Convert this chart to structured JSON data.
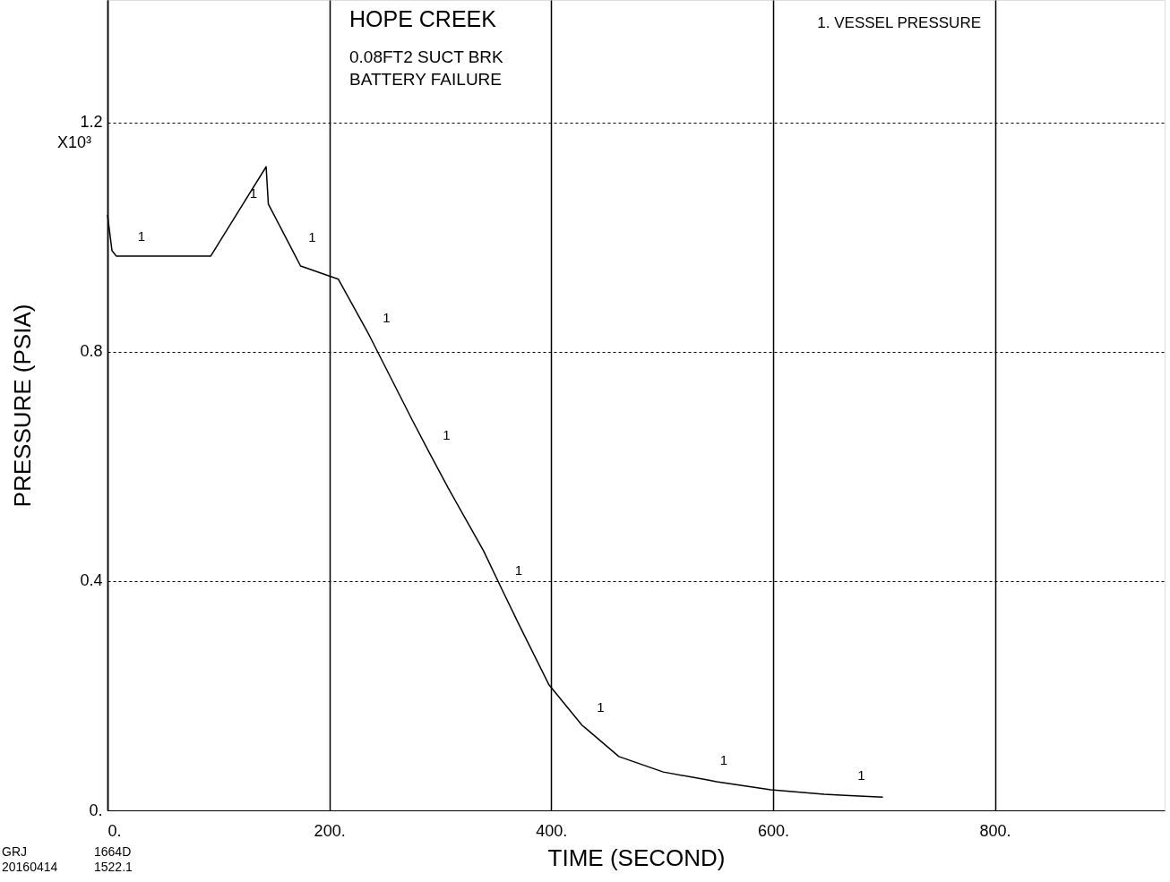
{
  "chart_data": {
    "type": "line",
    "title": "HOPE CREEK",
    "subtitle": [
      "0.08FT2 SUCT BRK",
      "BATTERY FAILURE"
    ],
    "xlabel": "TIME (SECOND)",
    "ylabel": "PRESSURE (PSIA)",
    "xlim": [
      0,
      953
    ],
    "ylim": [
      0,
      1.414
    ],
    "xticks": [
      {
        "value": 0,
        "label": "0."
      },
      {
        "value": 200,
        "label": "200."
      },
      {
        "value": 400,
        "label": "400."
      },
      {
        "value": 600,
        "label": "600."
      },
      {
        "value": 800,
        "label": "800."
      }
    ],
    "yticks": [
      {
        "value": 0,
        "label": "0."
      },
      0.4,
      0.8,
      1.2
    ],
    "grid": true,
    "legend": "top right",
    "series": [
      {
        "name": "1. VESSEL PRESSURE",
        "color": "#000000",
        "x": [
          0,
          4,
          8,
          16,
          93,
          117,
          143,
          145,
          170,
          174,
          208,
          234,
          237,
          275,
          291,
          307,
          339,
          356,
          372,
          398,
          428,
          430,
          461,
          501,
          541,
          549,
          598,
          646,
          665,
          699
        ],
        "values": [
          1.039,
          0.977,
          0.967,
          0.967,
          0.967,
          1.042,
          1.123,
          1.058,
          0.965,
          0.95,
          0.927,
          0.836,
          0.825,
          0.68,
          0.621,
          0.563,
          0.453,
          0.384,
          0.32,
          0.219,
          0.148,
          0.145,
          0.094,
          0.067,
          0.053,
          0.05,
          0.036,
          0.028,
          0.026,
          0.023
        ]
      }
    ],
    "annotations": [
      "X10³",
      "GRJ",
      "1664D",
      "20160414",
      "1522.1",
      {
        "text": "1",
        "x": 16,
        "y": 0.967
      },
      {
        "text": "1",
        "x": 117,
        "y": 1.042
      },
      {
        "text": "1",
        "x": 170,
        "y": 0.965
      },
      {
        "text": "1",
        "x": 237,
        "y": 0.825
      },
      {
        "text": "1",
        "x": 291,
        "y": 0.621
      },
      {
        "text": "1",
        "x": 356,
        "y": 0.384
      },
      {
        "text": "1",
        "x": 430,
        "y": 0.145
      },
      {
        "text": "1",
        "x": 541,
        "y": 0.053
      },
      {
        "text": "1",
        "x": 665,
        "y": 0.026
      }
    ]
  }
}
